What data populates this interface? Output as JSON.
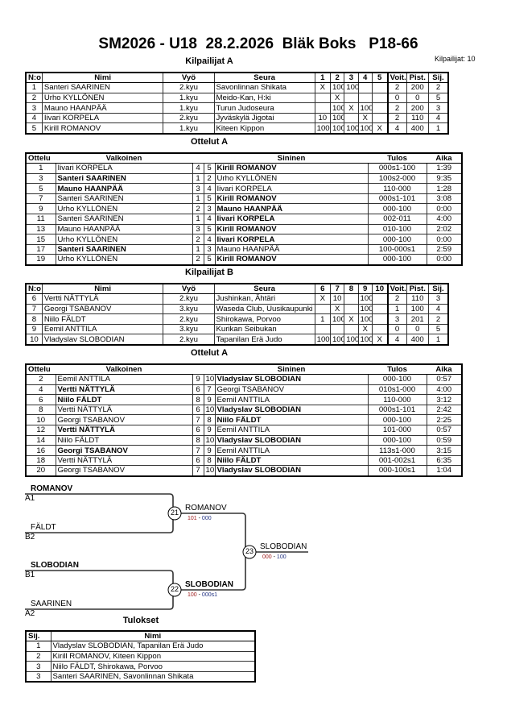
{
  "title": "SM2026 - U18  28.2.2026  Bläk Boks   P18-66",
  "count_label": "Kilpailijat: 10",
  "pool_a": {
    "title": "Kilpailijat A",
    "headers": [
      "N:o",
      "Nimi",
      "Vyö",
      "Seura",
      "1",
      "2",
      "3",
      "4",
      "5",
      "Voit.",
      "Pist.",
      "Sij."
    ],
    "rows": [
      [
        "1",
        "Santeri SAARINEN",
        "2.kyu",
        "Savonlinnan Shikata",
        "X",
        "100",
        "100",
        "",
        "",
        "2",
        "200",
        "2"
      ],
      [
        "2",
        "Urho KYLLÖNEN",
        "1.kyu",
        "Meido-Kan, H:ki",
        "",
        "X",
        "",
        "",
        "",
        "0",
        "0",
        "5"
      ],
      [
        "3",
        "Mauno HAANPÄÄ",
        "1.kyu",
        "Turun Judoseura",
        "",
        "100",
        "X",
        "100",
        "",
        "2",
        "200",
        "3"
      ],
      [
        "4",
        "Iivari KORPELA",
        "2.kyu",
        "Jyväskylä Jigotai",
        "10",
        "100",
        "",
        "X",
        "",
        "2",
        "110",
        "4"
      ],
      [
        "5",
        "Kirill ROMANOV",
        "1.kyu",
        "Kiteen Kippon",
        "100",
        "100",
        "100",
        "100",
        "X",
        "4",
        "400",
        "1"
      ]
    ]
  },
  "matches_a": {
    "title": "Ottelut A",
    "headers": [
      "Ottelu",
      "Valkoinen",
      "",
      "",
      "Sininen",
      "Tulos",
      "Aika"
    ],
    "rows": [
      {
        "n": "1",
        "white": "Iivari KORPELA",
        "w": "4",
        "b": "5",
        "blue": "Kirill ROMANOV",
        "score": "000s1-100",
        "time": "1:39",
        "winner": "blue"
      },
      {
        "n": "3",
        "white": "Santeri SAARINEN",
        "w": "1",
        "b": "2",
        "blue": "Urho KYLLÖNEN",
        "score": "100s2-000",
        "time": "9:35",
        "winner": "white"
      },
      {
        "n": "5",
        "white": "Mauno HAANPÄÄ",
        "w": "3",
        "b": "4",
        "blue": "Iivari KORPELA",
        "score": "110-000",
        "time": "1:28",
        "winner": "white"
      },
      {
        "n": "7",
        "white": "Santeri SAARINEN",
        "w": "1",
        "b": "5",
        "blue": "Kirill ROMANOV",
        "score": "000s1-101",
        "time": "3:08",
        "winner": "blue"
      },
      {
        "n": "9",
        "white": "Urho KYLLÖNEN",
        "w": "2",
        "b": "3",
        "blue": "Mauno HAANPÄÄ",
        "score": "000-100",
        "time": "0:00",
        "winner": "blue"
      },
      {
        "n": "11",
        "white": "Santeri SAARINEN",
        "w": "1",
        "b": "4",
        "blue": "Iivari KORPELA",
        "score": "002-011",
        "time": "4:00",
        "winner": "blue"
      },
      {
        "n": "13",
        "white": "Mauno HAANPÄÄ",
        "w": "3",
        "b": "5",
        "blue": "Kirill ROMANOV",
        "score": "010-100",
        "time": "2:02",
        "winner": "blue"
      },
      {
        "n": "15",
        "white": "Urho KYLLÖNEN",
        "w": "2",
        "b": "4",
        "blue": "Iivari KORPELA",
        "score": "000-100",
        "time": "0:00",
        "winner": "blue"
      },
      {
        "n": "17",
        "white": "Santeri SAARINEN",
        "w": "1",
        "b": "3",
        "blue": "Mauno HAANPÄÄ",
        "score": "100-000s1",
        "time": "2:59",
        "winner": "white"
      },
      {
        "n": "19",
        "white": "Urho KYLLÖNEN",
        "w": "2",
        "b": "5",
        "blue": "Kirill ROMANOV",
        "score": "000-100",
        "time": "0:00",
        "winner": "blue"
      }
    ]
  },
  "pool_b": {
    "title": "Kilpailijat B",
    "headers": [
      "N:o",
      "Nimi",
      "Vyö",
      "Seura",
      "6",
      "7",
      "8",
      "9",
      "10",
      "Voit.",
      "Pist.",
      "Sij."
    ],
    "rows": [
      [
        "6",
        "Vertti NÄTTYLÄ",
        "2.kyu",
        "Jushinkan, Ähtäri",
        "X",
        "10",
        "",
        "100",
        "",
        "2",
        "110",
        "3"
      ],
      [
        "7",
        "Georgi TSABANOV",
        "3.kyu",
        "Waseda Club, Uusikaupunki",
        "",
        "X",
        "",
        "100",
        "",
        "1",
        "100",
        "4"
      ],
      [
        "8",
        "Niilo FÄLDT",
        "2.kyu",
        "Shirokawa, Porvoo",
        "1",
        "100",
        "X",
        "100",
        "",
        "3",
        "201",
        "2"
      ],
      [
        "9",
        "Eemil ANTTILA",
        "3.kyu",
        "Kurikan Seibukan",
        "",
        "",
        "",
        "X",
        "",
        "0",
        "0",
        "5"
      ],
      [
        "10",
        "Vladyslav SLOBODIAN",
        "2.kyu",
        "Tapanilan Erä Judo",
        "100",
        "100",
        "100",
        "100",
        "X",
        "4",
        "400",
        "1"
      ]
    ]
  },
  "matches_b": {
    "title": "Ottelut A",
    "headers": [
      "Ottelu",
      "Valkoinen",
      "",
      "",
      "Sininen",
      "Tulos",
      "Aika"
    ],
    "rows": [
      {
        "n": "2",
        "white": "Eemil ANTTILA",
        "w": "9",
        "b": "10",
        "blue": "Vladyslav SLOBODIAN",
        "score": "000-100",
        "time": "0:57",
        "winner": "blue"
      },
      {
        "n": "4",
        "white": "Vertti NÄTTYLÄ",
        "w": "6",
        "b": "7",
        "blue": "Georgi TSABANOV",
        "score": "010s1-000",
        "time": "4:00",
        "winner": "white"
      },
      {
        "n": "6",
        "white": "Niilo FÄLDT",
        "w": "8",
        "b": "9",
        "blue": "Eemil ANTTILA",
        "score": "110-000",
        "time": "3:12",
        "winner": "white"
      },
      {
        "n": "8",
        "white": "Vertti NÄTTYLÄ",
        "w": "6",
        "b": "10",
        "blue": "Vladyslav SLOBODIAN",
        "score": "000s1-101",
        "time": "2:42",
        "winner": "blue"
      },
      {
        "n": "10",
        "white": "Georgi TSABANOV",
        "w": "7",
        "b": "8",
        "blue": "Niilo FÄLDT",
        "score": "000-100",
        "time": "2:25",
        "winner": "blue"
      },
      {
        "n": "12",
        "white": "Vertti NÄTTYLÄ",
        "w": "6",
        "b": "9",
        "blue": "Eemil ANTTILA",
        "score": "101-000",
        "time": "0:57",
        "winner": "white"
      },
      {
        "n": "14",
        "white": "Niilo FÄLDT",
        "w": "8",
        "b": "10",
        "blue": "Vladyslav SLOBODIAN",
        "score": "000-100",
        "time": "0:59",
        "winner": "blue"
      },
      {
        "n": "16",
        "white": "Georgi TSABANOV",
        "w": "7",
        "b": "9",
        "blue": "Eemil ANTTILA",
        "score": "113s1-000",
        "time": "3:15",
        "winner": "white"
      },
      {
        "n": "18",
        "white": "Vertti NÄTTYLÄ",
        "w": "6",
        "b": "8",
        "blue": "Niilo FÄLDT",
        "score": "001-002s1",
        "time": "6:35",
        "winner": "blue"
      },
      {
        "n": "20",
        "white": "Georgi TSABANOV",
        "w": "7",
        "b": "10",
        "blue": "Vladyslav SLOBODIAN",
        "score": "000-100s1",
        "time": "1:04",
        "winner": "blue"
      }
    ]
  },
  "bracket": {
    "a1_name": "ROMANOV",
    "a1_seed": "A1",
    "b2_name": "FÄLDT",
    "b2_seed": "B2",
    "b1_name": "SLOBODIAN",
    "b1_seed": "B1",
    "a2_name": "SAARINEN",
    "a2_seed": "A2",
    "m21": "21",
    "m21_winner": "ROMANOV",
    "m21_score_w": "101",
    "m21_score_b": "000",
    "m22": "22",
    "m22_winner": "SLOBODIAN",
    "m22_score_w": "100",
    "m22_score_b": "000s1",
    "m23": "23",
    "m23_winner": "SLOBODIAN",
    "m23_score_w": "000",
    "m23_score_b": "100",
    "score_sep": " - ",
    "colors": {
      "white_score": "#a02020",
      "blue_score": "#203080"
    }
  },
  "results": {
    "title": "Tulokset",
    "headers": [
      "Sij.",
      "Nimi"
    ],
    "rows": [
      [
        "1",
        "Vladyslav SLOBODIAN, Tapanilan Erä Judo"
      ],
      [
        "2",
        "Kirill ROMANOV, Kiteen Kippon"
      ],
      [
        "3",
        "Niilo FÄLDT, Shirokawa, Porvoo"
      ],
      [
        "3",
        "Santeri SAARINEN, Savonlinnan Shikata"
      ]
    ]
  }
}
